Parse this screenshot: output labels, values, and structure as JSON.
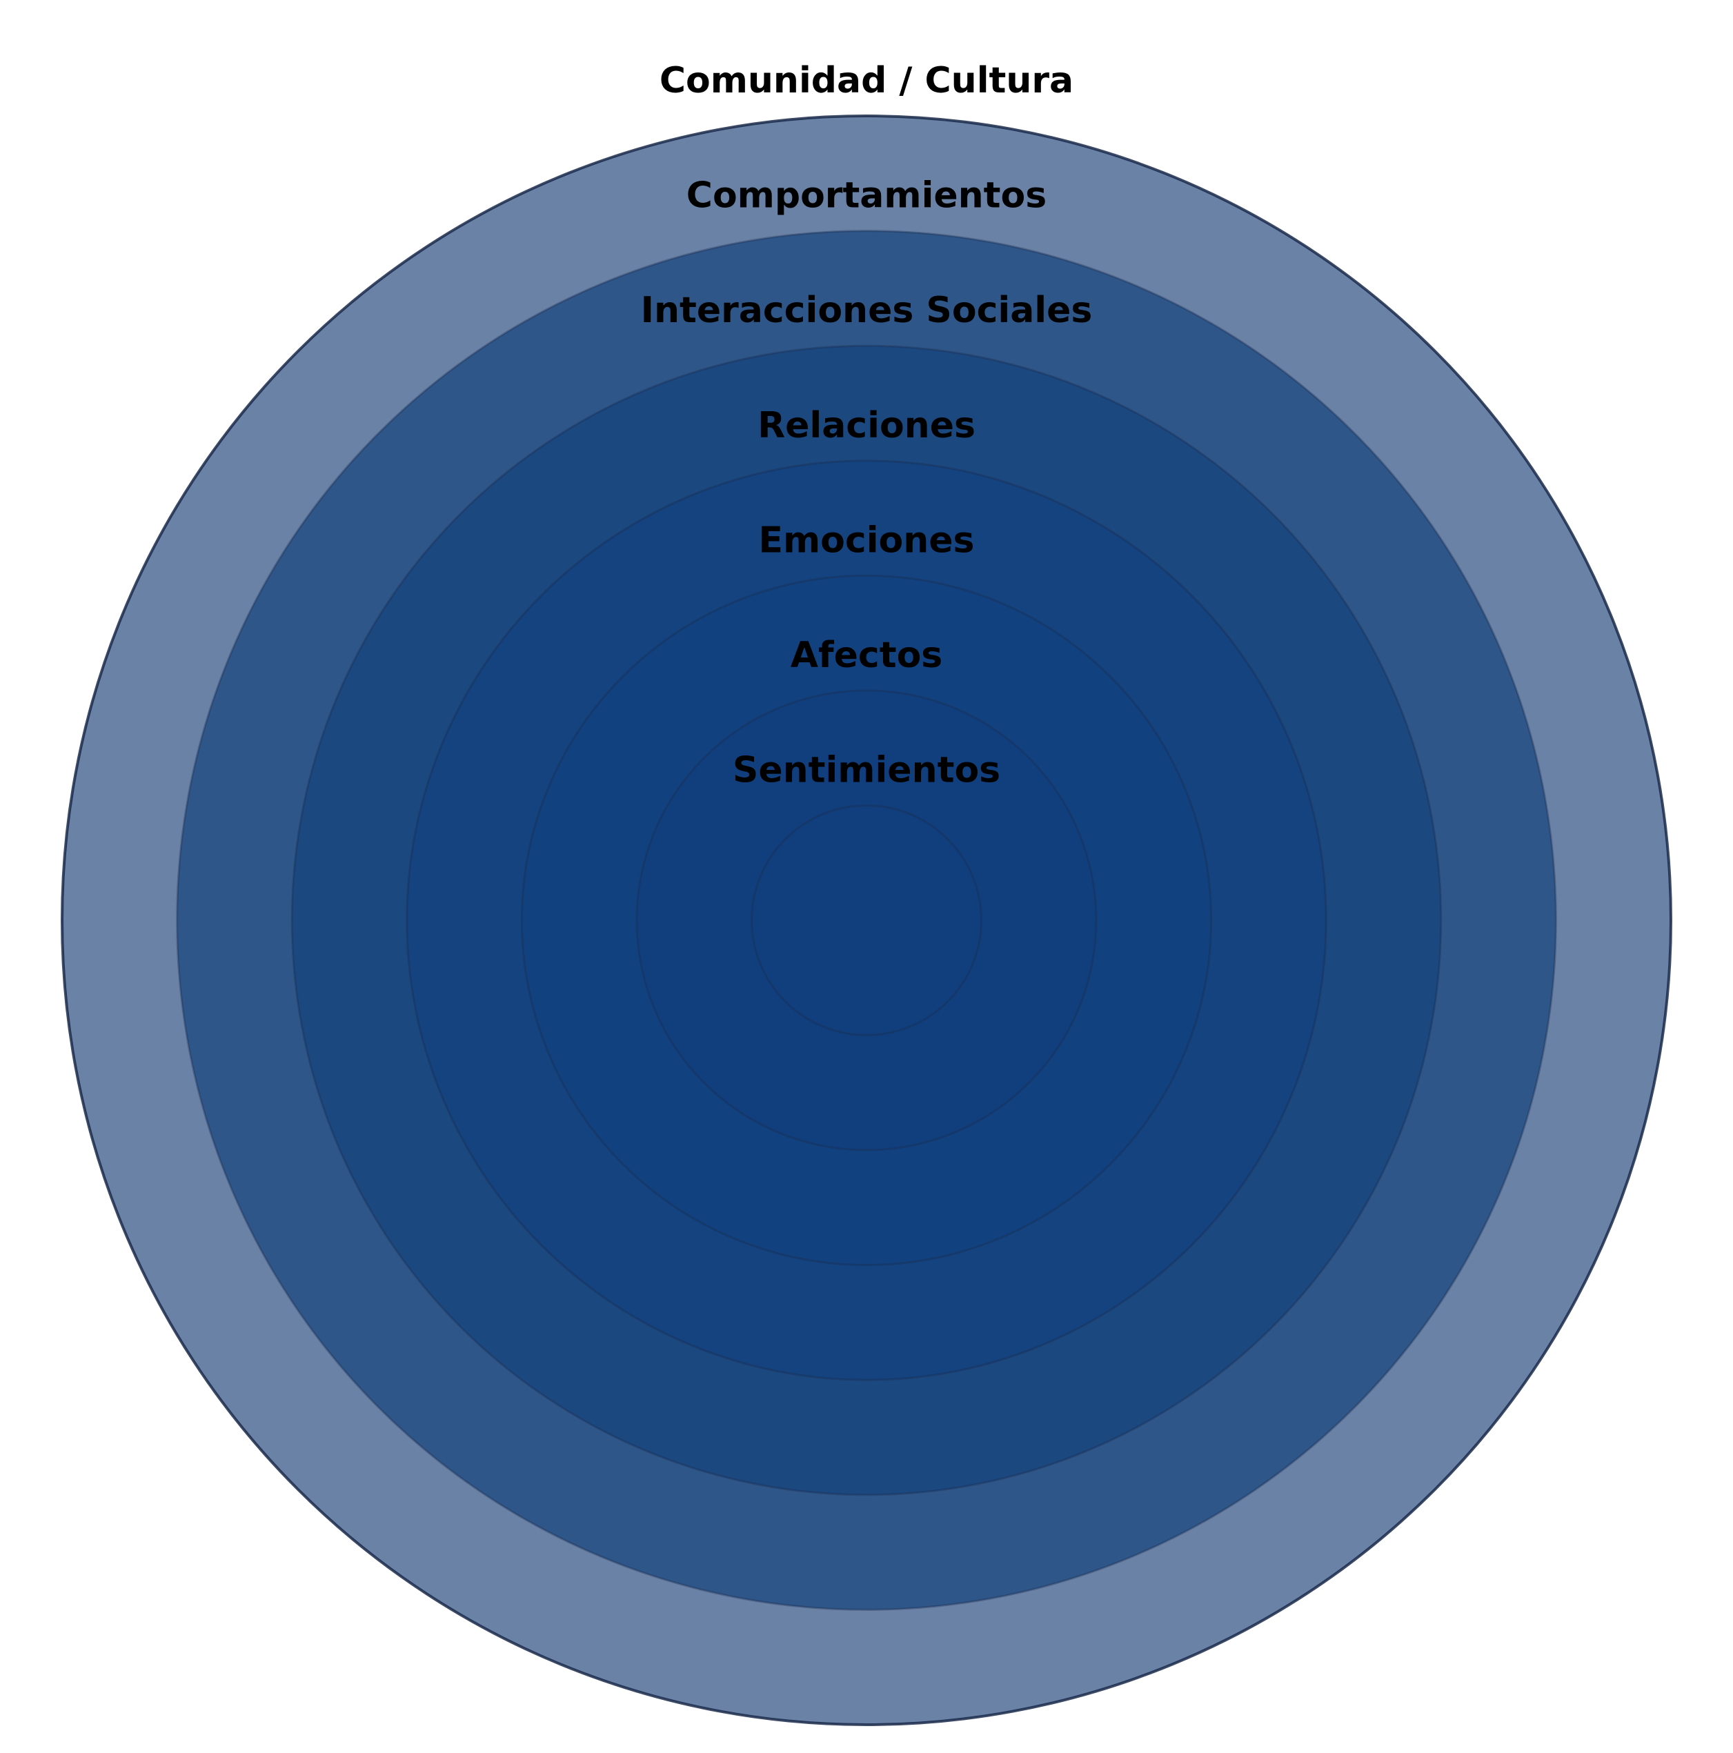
{
  "diagram": {
    "type": "concentric-circles",
    "fill_color": "#0b3a7a",
    "outer_fill_color": "#1c3f78",
    "stroke_color": "#1a2a4a",
    "layers": [
      {
        "label": "Comunidad / Cultura",
        "color": "#6b82a7"
      },
      {
        "label": "Comportamientos",
        "color": "#2f5689"
      },
      {
        "label": "Interacciones Sociales",
        "color": "#1c4880"
      },
      {
        "label": "Relaciones",
        "color": "#14437f"
      },
      {
        "label": "Emociones",
        "color": "#12417f"
      },
      {
        "label": "Afectos",
        "color": "#113f7d"
      },
      {
        "label": "Sentimientos",
        "color": "#113f7d"
      }
    ]
  }
}
